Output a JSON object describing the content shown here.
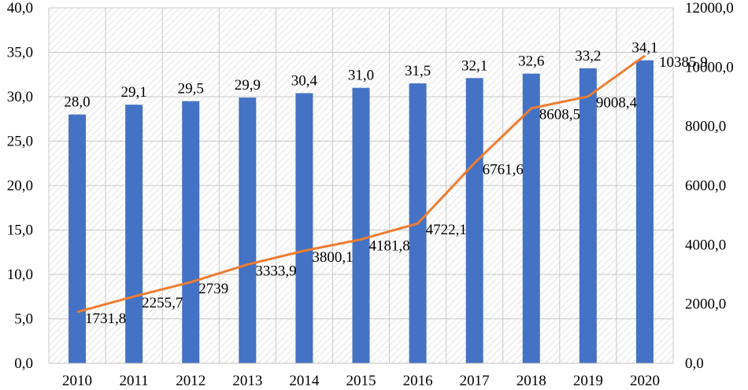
{
  "chart_data": {
    "type": "bar+line",
    "categories": [
      "2010",
      "2011",
      "2012",
      "2013",
      "2014",
      "2015",
      "2016",
      "2017",
      "2018",
      "2019",
      "2020"
    ],
    "series": [
      {
        "chart": "bar",
        "axis": "left",
        "values": [
          28.0,
          29.1,
          29.5,
          29.9,
          30.4,
          31.0,
          31.5,
          32.1,
          32.6,
          33.2,
          34.1
        ],
        "labels": [
          "28,0",
          "29,1",
          "29,5",
          "29,9",
          "30,4",
          "31,0",
          "31,5",
          "32,1",
          "32,6",
          "33,2",
          "34,1"
        ],
        "color": "#4472c4"
      },
      {
        "chart": "line",
        "axis": "right",
        "values": [
          1731.8,
          2255.7,
          2739,
          3333.9,
          3800.1,
          4181.8,
          4722.1,
          6761.6,
          8608.5,
          9008.4,
          10385.9
        ],
        "labels": [
          "1731,8",
          "2255,7",
          "2739",
          "3333,9",
          "3800,1",
          "4181,8",
          "4722,1",
          "6761,6",
          "8608,5",
          "9008,4",
          "10385,9"
        ],
        "color": "#ed7d31"
      }
    ],
    "y_left": {
      "range": [
        0,
        40
      ],
      "ticks": [
        "0,0",
        "5,0",
        "10,0",
        "15,0",
        "20,0",
        "25,0",
        "30,0",
        "35,0",
        "40,0"
      ]
    },
    "y_right": {
      "range": [
        0,
        12000
      ],
      "ticks": [
        "0,0",
        "2000,0",
        "4000,0",
        "6000,0",
        "8000,0",
        "10000,0",
        "12000,0"
      ]
    },
    "plot_background": "hatched",
    "grid": true,
    "legend": "none"
  }
}
